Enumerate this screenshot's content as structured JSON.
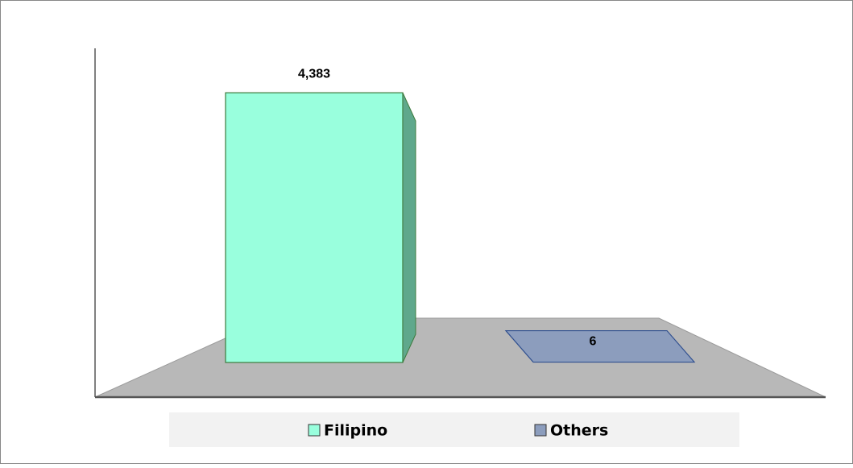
{
  "chart_data": {
    "type": "bar3d",
    "categories": [
      null
    ],
    "series": [
      {
        "name": "Filipino",
        "color": "#99ffdd",
        "values": [
          4383
        ],
        "value_labels": [
          "4,383"
        ]
      },
      {
        "name": "Others",
        "color": "#8c9dbd",
        "values": [
          6
        ],
        "value_labels": [
          "6"
        ]
      }
    ],
    "ylim": [
      0,
      5000
    ]
  }
}
